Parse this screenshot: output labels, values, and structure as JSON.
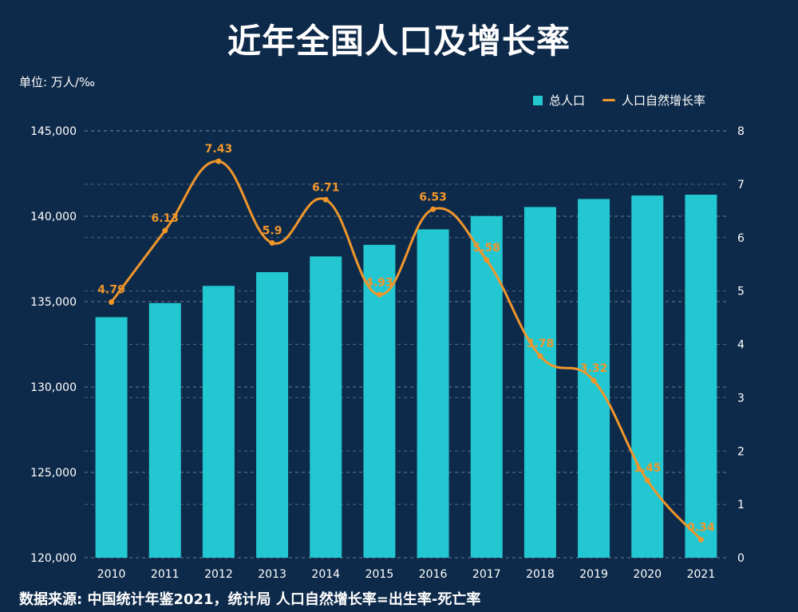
{
  "title": "近年全国人口及增长率",
  "unit_label": "单位: 万人/‰",
  "legend": {
    "bar_label": "总人口",
    "line_label": "人口自然增长率"
  },
  "footer": "数据来源: 中国统计年鉴2021，统计局  人口自然增长率=出生率-死亡率",
  "colors": {
    "background": "#0e2a4a",
    "bar": "#22c7d1",
    "line": "#f0962b",
    "grid": "#8aa0b8"
  },
  "chart_data": {
    "type": "bar",
    "categories": [
      "2010",
      "2011",
      "2012",
      "2013",
      "2014",
      "2015",
      "2016",
      "2017",
      "2018",
      "2019",
      "2020",
      "2021"
    ],
    "series": [
      {
        "name": "总人口",
        "type": "bar",
        "axis": "left",
        "values": [
          134091,
          134916,
          135922,
          136726,
          137646,
          138326,
          139232,
          140011,
          140541,
          141008,
          141212,
          141260
        ]
      },
      {
        "name": "人口自然增长率",
        "type": "line",
        "axis": "right",
        "smooth": true,
        "values": [
          4.79,
          6.13,
          7.43,
          5.9,
          6.71,
          4.93,
          6.53,
          5.58,
          3.78,
          3.32,
          1.45,
          0.34
        ],
        "labels": [
          "4.79",
          "6.13",
          "7.43",
          "5.9",
          "6.71",
          "4.93",
          "6.53",
          "5.58",
          "3.78",
          "3.32",
          "1.45",
          "0.34"
        ]
      }
    ],
    "y_left": {
      "ylim": [
        120000,
        145000
      ],
      "ticks": [
        "120,000",
        "125,000",
        "130,000",
        "135,000",
        "140,000",
        "145,000"
      ],
      "tick_values": [
        120000,
        125000,
        130000,
        135000,
        140000,
        145000
      ]
    },
    "y_right": {
      "ylim": [
        0,
        8
      ],
      "ticks": [
        "0",
        "1",
        "2",
        "3",
        "4",
        "5",
        "6",
        "7",
        "8"
      ],
      "tick_values": [
        0,
        1,
        2,
        3,
        4,
        5,
        6,
        7,
        8
      ]
    },
    "grid": true,
    "legend_position": "top-right"
  }
}
